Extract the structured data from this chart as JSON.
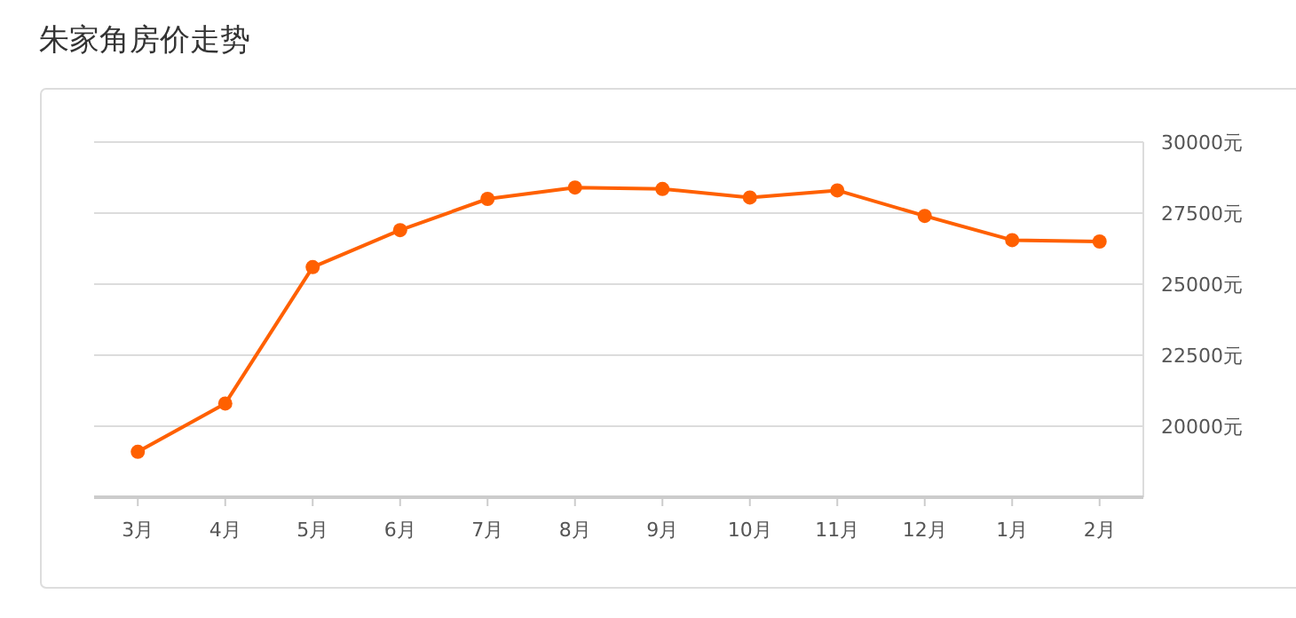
{
  "chart_data": {
    "type": "line",
    "title": "朱家角房价走势",
    "categories": [
      "3月",
      "4月",
      "5月",
      "6月",
      "7月",
      "8月",
      "9月",
      "10月",
      "11月",
      "12月",
      "1月",
      "2月"
    ],
    "series": [
      {
        "color": "#ff6000",
        "values": [
          19100,
          20800,
          25600,
          26900,
          28000,
          28400,
          28350,
          28050,
          28300,
          27400,
          26550,
          26500
        ]
      }
    ],
    "ylim": [
      17500,
      30000
    ],
    "yticks": [
      {
        "value": 20000,
        "label": "20000元"
      },
      {
        "value": 22500,
        "label": "22500元"
      },
      {
        "value": 25000,
        "label": "25000元"
      },
      {
        "value": 27500,
        "label": "27500元"
      },
      {
        "value": 30000,
        "label": "30000元"
      }
    ],
    "grid": "y",
    "marker": "circle",
    "line_style": "solid"
  }
}
